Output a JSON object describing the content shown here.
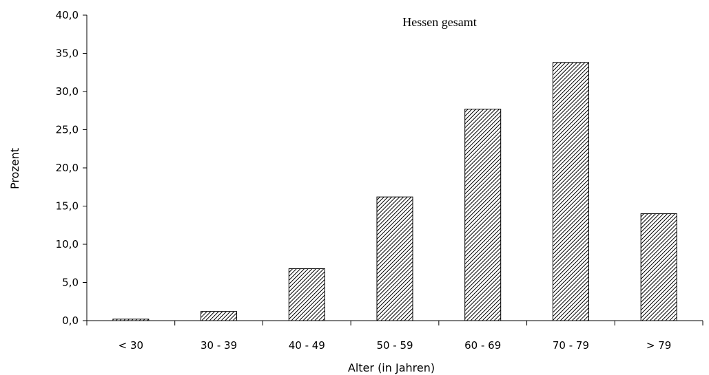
{
  "chart_data": {
    "type": "bar",
    "title": "Hessen gesamt",
    "xlabel": "Alter (in Jahren)",
    "ylabel": "Prozent",
    "categories": [
      "< 30",
      "30 - 39",
      "40 - 49",
      "50 - 59",
      "60 - 69",
      "70 - 79",
      "> 79"
    ],
    "values": [
      0.2,
      1.2,
      6.8,
      16.2,
      27.7,
      33.8,
      14.0
    ],
    "ylim": [
      0,
      40
    ],
    "yticks": [
      "0,0",
      "5,0",
      "10,0",
      "15,0",
      "20,0",
      "25,0",
      "30,0",
      "35,0",
      "40,0"
    ],
    "grid": false,
    "legend": "none",
    "bar_fill": "diagonal-hatch",
    "colors": {
      "bar_stroke": "#000000",
      "hatch": "#000000",
      "background": "#ffffff"
    }
  }
}
